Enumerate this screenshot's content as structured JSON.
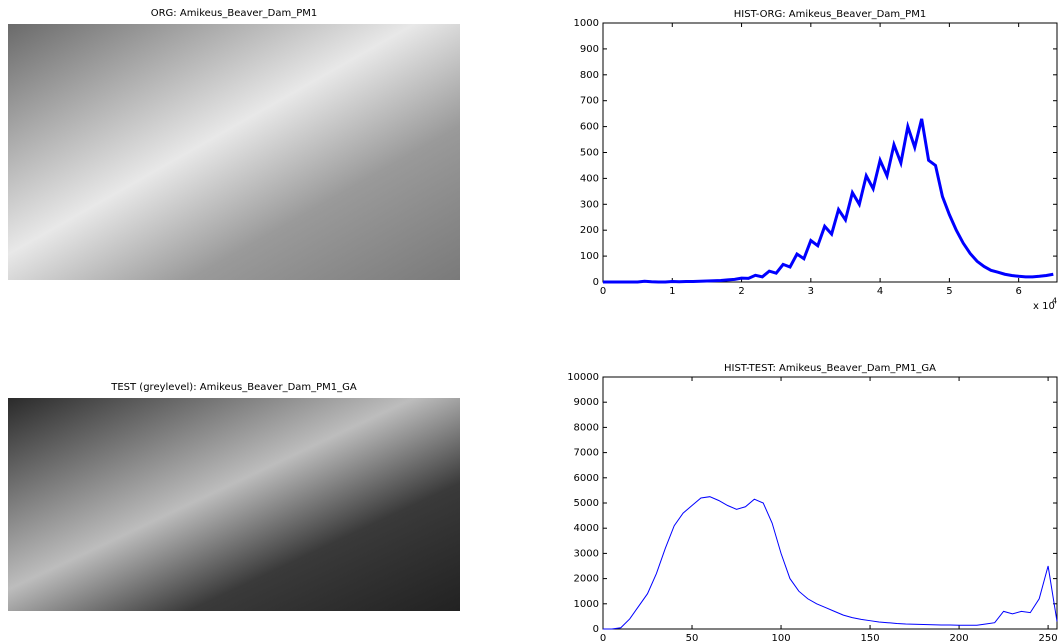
{
  "chart_data": [
    {
      "type": "image",
      "title": "ORG: Amikeus_Beaver_Dam_PM1"
    },
    {
      "type": "line",
      "title": "HIST-ORG: Amikeus_Beaver_Dam_PM1",
      "color": "#0000ff",
      "x": [
        0,
        1000,
        2000,
        3000,
        4000,
        5000,
        6000,
        7000,
        8000,
        9000,
        10000,
        11000,
        12000,
        13000,
        14000,
        15000,
        16000,
        17000,
        18000,
        19000,
        20000,
        21000,
        22000,
        23000,
        24000,
        25000,
        26000,
        27000,
        28000,
        29000,
        30000,
        31000,
        32000,
        33000,
        34000,
        35000,
        36000,
        37000,
        38000,
        39000,
        40000,
        41000,
        42000,
        43000,
        44000,
        45000,
        46000,
        47000,
        48000,
        49000,
        50000,
        51000,
        52000,
        53000,
        54000,
        55000,
        56000,
        57000,
        58000,
        59000,
        60000,
        61000,
        62000,
        63000,
        64000,
        65000
      ],
      "values": [
        0,
        0,
        0,
        0,
        0,
        0,
        3,
        1,
        0,
        0,
        2,
        1,
        2,
        2,
        3,
        4,
        5,
        6,
        8,
        10,
        15,
        14,
        26,
        20,
        42,
        34,
        68,
        58,
        108,
        90,
        160,
        140,
        215,
        185,
        280,
        240,
        345,
        300,
        410,
        360,
        470,
        410,
        530,
        460,
        600,
        520,
        630,
        470,
        450,
        330,
        260,
        200,
        150,
        110,
        80,
        60,
        45,
        38,
        30,
        25,
        22,
        20,
        20,
        22,
        25,
        30
      ],
      "xlim": [
        0,
        65535
      ],
      "ylim": [
        0,
        1000
      ],
      "xticks": [
        {
          "value": 0,
          "label": "0"
        },
        {
          "value": 10000,
          "label": "1"
        },
        {
          "value": 20000,
          "label": "2"
        },
        {
          "value": 30000,
          "label": "3"
        },
        {
          "value": 40000,
          "label": "4"
        },
        {
          "value": 50000,
          "label": "5"
        },
        {
          "value": 60000,
          "label": "6"
        }
      ],
      "yticks": [
        0,
        100,
        200,
        300,
        400,
        500,
        600,
        700,
        800,
        900,
        1000
      ],
      "x_multiplier": "x 10",
      "x_exponent": "4"
    },
    {
      "type": "image",
      "title": "TEST (greylevel): Amikeus_Beaver_Dam_PM1_GA"
    },
    {
      "type": "line",
      "title": "HIST-TEST: Amikeus_Beaver_Dam_PM1_GA",
      "color": "#0000ff",
      "x": [
        0,
        5,
        10,
        15,
        20,
        25,
        30,
        35,
        40,
        45,
        50,
        55,
        60,
        65,
        70,
        75,
        80,
        85,
        90,
        95,
        100,
        105,
        110,
        115,
        120,
        125,
        130,
        135,
        140,
        145,
        150,
        155,
        160,
        165,
        170,
        175,
        180,
        185,
        190,
        195,
        200,
        205,
        210,
        215,
        220,
        225,
        230,
        235,
        240,
        245,
        250,
        255
      ],
      "values": [
        0,
        0,
        50,
        400,
        900,
        1400,
        2200,
        3200,
        4100,
        4600,
        4900,
        5200,
        5250,
        5100,
        4900,
        4750,
        4850,
        5150,
        5000,
        4200,
        3000,
        2000,
        1500,
        1200,
        1000,
        850,
        700,
        550,
        450,
        380,
        330,
        280,
        250,
        220,
        200,
        190,
        180,
        170,
        160,
        160,
        150,
        150,
        150,
        200,
        250,
        700,
        600,
        700,
        650,
        1200,
        2500,
        300
      ],
      "xlim": [
        0,
        255
      ],
      "ylim": [
        0,
        10000
      ],
      "xticks": [
        0,
        50,
        100,
        150,
        200,
        250
      ],
      "yticks": [
        0,
        1000,
        2000,
        3000,
        4000,
        5000,
        6000,
        7000,
        8000,
        9000,
        10000
      ]
    }
  ]
}
